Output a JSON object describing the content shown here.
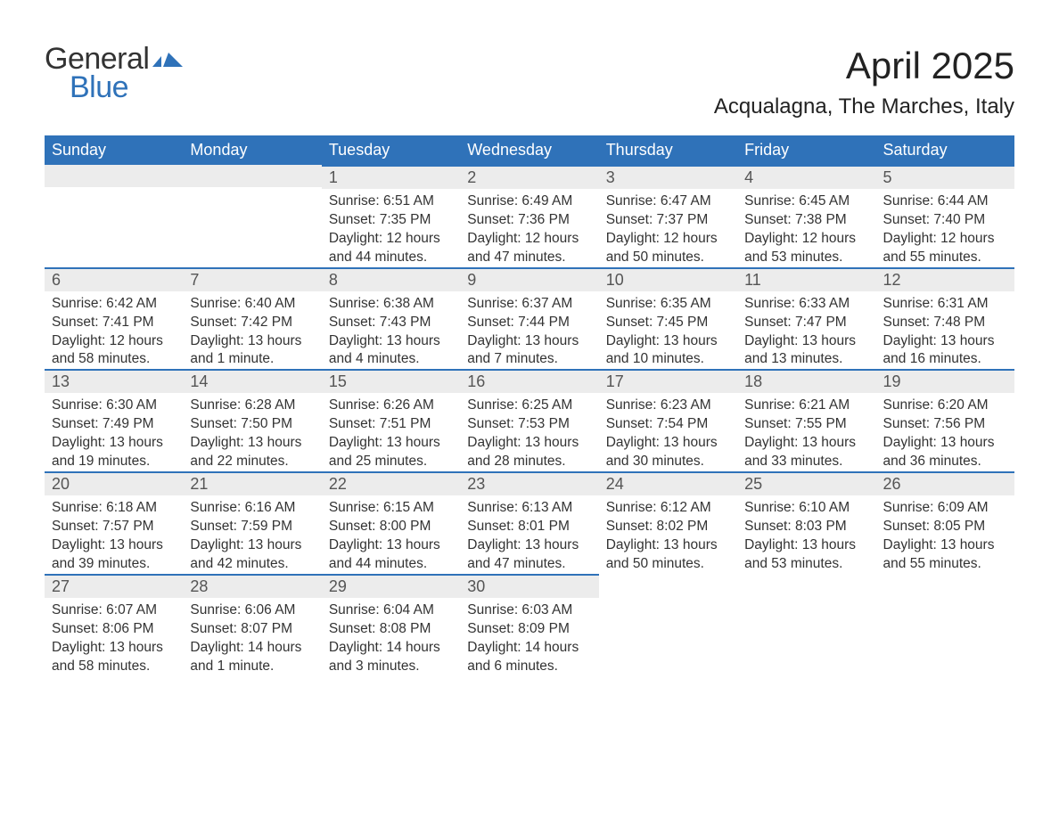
{
  "logo": {
    "general": "General",
    "blue": "Blue",
    "icon_color": "#2f72b9"
  },
  "title": {
    "month": "April 2025",
    "location": "Acqualagna, The Marches, Italy"
  },
  "theme": {
    "header_bg": "#2f72b9",
    "header_fg": "#ffffff",
    "daynum_bg": "#ececec",
    "daynum_border": "#2f72b9",
    "text_color": "#333333"
  },
  "weekdays": [
    "Sunday",
    "Monday",
    "Tuesday",
    "Wednesday",
    "Thursday",
    "Friday",
    "Saturday"
  ],
  "weeks": [
    [
      {
        "day": ""
      },
      {
        "day": ""
      },
      {
        "day": "1",
        "sunrise": "Sunrise: 6:51 AM",
        "sunset": "Sunset: 7:35 PM",
        "daylight1": "Daylight: 12 hours",
        "daylight2": "and 44 minutes."
      },
      {
        "day": "2",
        "sunrise": "Sunrise: 6:49 AM",
        "sunset": "Sunset: 7:36 PM",
        "daylight1": "Daylight: 12 hours",
        "daylight2": "and 47 minutes."
      },
      {
        "day": "3",
        "sunrise": "Sunrise: 6:47 AM",
        "sunset": "Sunset: 7:37 PM",
        "daylight1": "Daylight: 12 hours",
        "daylight2": "and 50 minutes."
      },
      {
        "day": "4",
        "sunrise": "Sunrise: 6:45 AM",
        "sunset": "Sunset: 7:38 PM",
        "daylight1": "Daylight: 12 hours",
        "daylight2": "and 53 minutes."
      },
      {
        "day": "5",
        "sunrise": "Sunrise: 6:44 AM",
        "sunset": "Sunset: 7:40 PM",
        "daylight1": "Daylight: 12 hours",
        "daylight2": "and 55 minutes."
      }
    ],
    [
      {
        "day": "6",
        "sunrise": "Sunrise: 6:42 AM",
        "sunset": "Sunset: 7:41 PM",
        "daylight1": "Daylight: 12 hours",
        "daylight2": "and 58 minutes."
      },
      {
        "day": "7",
        "sunrise": "Sunrise: 6:40 AM",
        "sunset": "Sunset: 7:42 PM",
        "daylight1": "Daylight: 13 hours",
        "daylight2": "and 1 minute."
      },
      {
        "day": "8",
        "sunrise": "Sunrise: 6:38 AM",
        "sunset": "Sunset: 7:43 PM",
        "daylight1": "Daylight: 13 hours",
        "daylight2": "and 4 minutes."
      },
      {
        "day": "9",
        "sunrise": "Sunrise: 6:37 AM",
        "sunset": "Sunset: 7:44 PM",
        "daylight1": "Daylight: 13 hours",
        "daylight2": "and 7 minutes."
      },
      {
        "day": "10",
        "sunrise": "Sunrise: 6:35 AM",
        "sunset": "Sunset: 7:45 PM",
        "daylight1": "Daylight: 13 hours",
        "daylight2": "and 10 minutes."
      },
      {
        "day": "11",
        "sunrise": "Sunrise: 6:33 AM",
        "sunset": "Sunset: 7:47 PM",
        "daylight1": "Daylight: 13 hours",
        "daylight2": "and 13 minutes."
      },
      {
        "day": "12",
        "sunrise": "Sunrise: 6:31 AM",
        "sunset": "Sunset: 7:48 PM",
        "daylight1": "Daylight: 13 hours",
        "daylight2": "and 16 minutes."
      }
    ],
    [
      {
        "day": "13",
        "sunrise": "Sunrise: 6:30 AM",
        "sunset": "Sunset: 7:49 PM",
        "daylight1": "Daylight: 13 hours",
        "daylight2": "and 19 minutes."
      },
      {
        "day": "14",
        "sunrise": "Sunrise: 6:28 AM",
        "sunset": "Sunset: 7:50 PM",
        "daylight1": "Daylight: 13 hours",
        "daylight2": "and 22 minutes."
      },
      {
        "day": "15",
        "sunrise": "Sunrise: 6:26 AM",
        "sunset": "Sunset: 7:51 PM",
        "daylight1": "Daylight: 13 hours",
        "daylight2": "and 25 minutes."
      },
      {
        "day": "16",
        "sunrise": "Sunrise: 6:25 AM",
        "sunset": "Sunset: 7:53 PM",
        "daylight1": "Daylight: 13 hours",
        "daylight2": "and 28 minutes."
      },
      {
        "day": "17",
        "sunrise": "Sunrise: 6:23 AM",
        "sunset": "Sunset: 7:54 PM",
        "daylight1": "Daylight: 13 hours",
        "daylight2": "and 30 minutes."
      },
      {
        "day": "18",
        "sunrise": "Sunrise: 6:21 AM",
        "sunset": "Sunset: 7:55 PM",
        "daylight1": "Daylight: 13 hours",
        "daylight2": "and 33 minutes."
      },
      {
        "day": "19",
        "sunrise": "Sunrise: 6:20 AM",
        "sunset": "Sunset: 7:56 PM",
        "daylight1": "Daylight: 13 hours",
        "daylight2": "and 36 minutes."
      }
    ],
    [
      {
        "day": "20",
        "sunrise": "Sunrise: 6:18 AM",
        "sunset": "Sunset: 7:57 PM",
        "daylight1": "Daylight: 13 hours",
        "daylight2": "and 39 minutes."
      },
      {
        "day": "21",
        "sunrise": "Sunrise: 6:16 AM",
        "sunset": "Sunset: 7:59 PM",
        "daylight1": "Daylight: 13 hours",
        "daylight2": "and 42 minutes."
      },
      {
        "day": "22",
        "sunrise": "Sunrise: 6:15 AM",
        "sunset": "Sunset: 8:00 PM",
        "daylight1": "Daylight: 13 hours",
        "daylight2": "and 44 minutes."
      },
      {
        "day": "23",
        "sunrise": "Sunrise: 6:13 AM",
        "sunset": "Sunset: 8:01 PM",
        "daylight1": "Daylight: 13 hours",
        "daylight2": "and 47 minutes."
      },
      {
        "day": "24",
        "sunrise": "Sunrise: 6:12 AM",
        "sunset": "Sunset: 8:02 PM",
        "daylight1": "Daylight: 13 hours",
        "daylight2": "and 50 minutes."
      },
      {
        "day": "25",
        "sunrise": "Sunrise: 6:10 AM",
        "sunset": "Sunset: 8:03 PM",
        "daylight1": "Daylight: 13 hours",
        "daylight2": "and 53 minutes."
      },
      {
        "day": "26",
        "sunrise": "Sunrise: 6:09 AM",
        "sunset": "Sunset: 8:05 PM",
        "daylight1": "Daylight: 13 hours",
        "daylight2": "and 55 minutes."
      }
    ],
    [
      {
        "day": "27",
        "sunrise": "Sunrise: 6:07 AM",
        "sunset": "Sunset: 8:06 PM",
        "daylight1": "Daylight: 13 hours",
        "daylight2": "and 58 minutes."
      },
      {
        "day": "28",
        "sunrise": "Sunrise: 6:06 AM",
        "sunset": "Sunset: 8:07 PM",
        "daylight1": "Daylight: 14 hours",
        "daylight2": "and 1 minute."
      },
      {
        "day": "29",
        "sunrise": "Sunrise: 6:04 AM",
        "sunset": "Sunset: 8:08 PM",
        "daylight1": "Daylight: 14 hours",
        "daylight2": "and 3 minutes."
      },
      {
        "day": "30",
        "sunrise": "Sunrise: 6:03 AM",
        "sunset": "Sunset: 8:09 PM",
        "daylight1": "Daylight: 14 hours",
        "daylight2": "and 6 minutes."
      },
      {
        "day": ""
      },
      {
        "day": ""
      },
      {
        "day": ""
      }
    ]
  ]
}
